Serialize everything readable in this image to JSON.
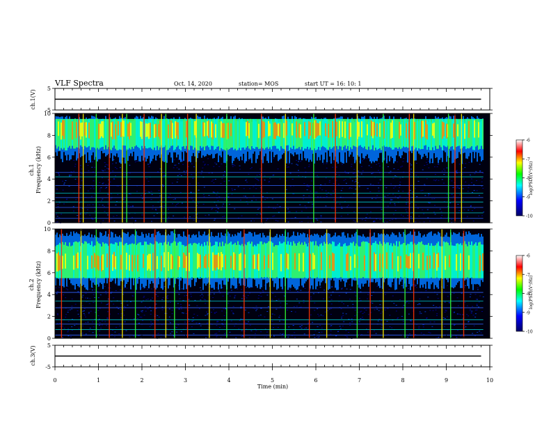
{
  "header": {
    "title": "VLF Spectra",
    "date": "Oct. 14, 2020",
    "station": "station= MOS",
    "start": "start  UT =   16: 10: 1"
  },
  "chart_data": [
    {
      "type": "line",
      "panel": "ch1-waveform",
      "ylabel": "ch.1(V)",
      "ylim": [
        -5,
        5
      ],
      "yticks": [
        "5",
        "-5"
      ],
      "xlim": [
        0,
        10
      ],
      "series": [
        {
          "x": [
            0,
            9.8
          ],
          "y": [
            0,
            0
          ]
        }
      ]
    },
    {
      "type": "heatmap",
      "panel": "ch1-spectrogram",
      "ylabel_line1": "ch.1",
      "ylabel_line2": "Frequency (kHz)",
      "ylim": [
        0,
        10
      ],
      "yticks": [
        "0",
        "2",
        "4",
        "6",
        "8",
        "10"
      ],
      "xlim": [
        0,
        10
      ],
      "colorbar": {
        "label": "log(PSD)(V²/Hz)",
        "range": [
          -10,
          -6
        ],
        "ticks": [
          "-6",
          "-7",
          "-8",
          "-9",
          "-10"
        ],
        "colors": [
          "#000066",
          "#0000ff",
          "#00ffff",
          "#00ff00",
          "#ffff00",
          "#ff0000",
          "#ffffff"
        ]
      },
      "band_khz": [
        6,
        9.5
      ],
      "band_peak_khz": 8.5,
      "impulses_min": [
        0.55,
        0.65,
        0.95,
        1.25,
        1.55,
        1.65,
        2.05,
        2.45,
        2.55,
        3.05,
        3.25,
        3.95,
        4.75,
        5.3,
        5.95,
        6.45,
        6.95,
        7.55,
        8.15,
        8.25,
        9.05,
        9.2,
        9.35
      ],
      "tones_khz": [
        0.4,
        0.9,
        1.4,
        1.9,
        2.3,
        2.7,
        3.4,
        4.2,
        4.6
      ]
    },
    {
      "type": "heatmap",
      "panel": "ch2-spectrogram",
      "ylabel_line1": "ch.2",
      "ylabel_line2": "Frequency (kHz)",
      "ylim": [
        0,
        10
      ],
      "yticks": [
        "0",
        "2",
        "4",
        "6",
        "8",
        "10"
      ],
      "xlim": [
        0,
        10
      ],
      "colorbar": {
        "label": "log(PSD)(V²/Hz)",
        "range": [
          -10,
          -6
        ],
        "ticks": [
          "-6",
          "-7",
          "-8",
          "-9",
          "-10"
        ],
        "colors": [
          "#000066",
          "#0000ff",
          "#00ffff",
          "#00ff00",
          "#ffff00",
          "#ff0000",
          "#ffffff"
        ]
      },
      "band_khz": [
        5,
        9.5
      ],
      "band_peak_khz": 7,
      "impulses_min": [
        0.15,
        0.6,
        0.95,
        1.25,
        1.55,
        1.85,
        2.3,
        2.55,
        2.75,
        3.05,
        3.55,
        3.95,
        4.35,
        4.95,
        5.3,
        5.85,
        6.25,
        6.95,
        7.25,
        7.55,
        8.05,
        8.25,
        8.9,
        9.1,
        9.4
      ],
      "tones_khz": [
        0.3,
        0.8,
        1.3,
        1.7,
        2.8,
        3.4,
        4.2
      ]
    },
    {
      "type": "line",
      "panel": "ch3-waveform",
      "ylabel": "ch.3(V)",
      "ylim": [
        -5,
        5
      ],
      "yticks": [
        "5",
        "-5"
      ],
      "xlim": [
        0,
        10
      ],
      "series": [
        {
          "x": [
            0,
            9.8
          ],
          "y": [
            0,
            0
          ]
        }
      ]
    }
  ],
  "x_axis": {
    "label": "Time (min)",
    "ticks": [
      "0",
      "1",
      "2",
      "3",
      "4",
      "5",
      "6",
      "7",
      "8",
      "9",
      "10"
    ]
  }
}
